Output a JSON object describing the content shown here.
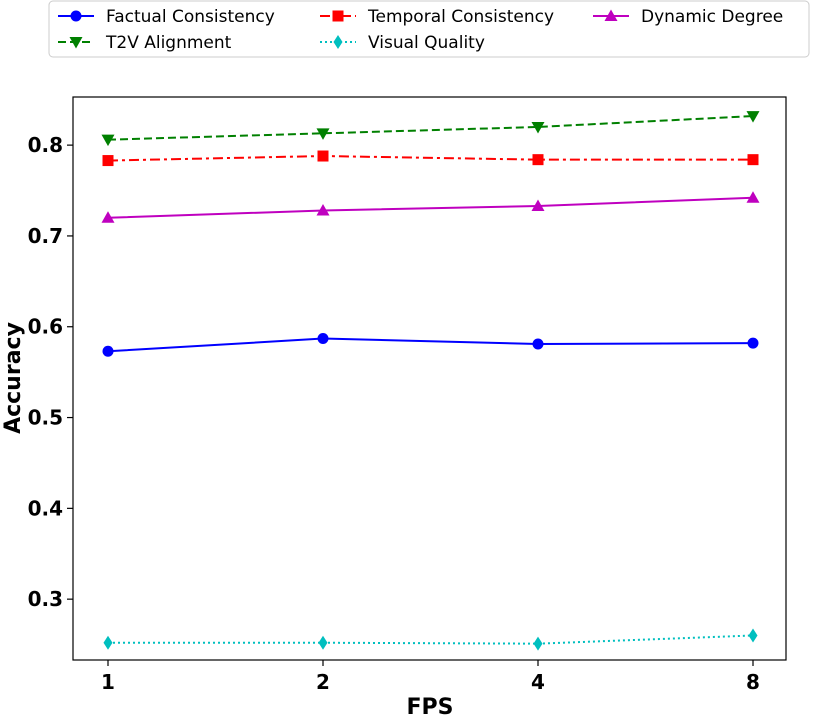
{
  "chart_data": {
    "type": "line",
    "title": "",
    "xlabel": "FPS",
    "ylabel": "Accuracy",
    "x": [
      1,
      2,
      4,
      8
    ],
    "x_tick_labels": [
      "1",
      "2",
      "4",
      "8"
    ],
    "y_ticks": [
      0.3,
      0.4,
      0.5,
      0.6,
      0.7,
      0.8
    ],
    "y_tick_labels": [
      "0.3",
      "0.4",
      "0.5",
      "0.6",
      "0.7",
      "0.8"
    ],
    "ylim": [
      0.233,
      0.853
    ],
    "legend_position": "top, outside plot, 3 columns",
    "grid": false,
    "series": [
      {
        "name": "Factual Consistency",
        "values": [
          0.573,
          0.587,
          0.581,
          0.582
        ],
        "color": "#0000ff",
        "marker": "circle",
        "linestyle": "solid"
      },
      {
        "name": "Temporal Consistency",
        "values": [
          0.783,
          0.788,
          0.784,
          0.784
        ],
        "color": "#ff0000",
        "marker": "square",
        "linestyle": "dashdot"
      },
      {
        "name": "Dynamic Degree",
        "values": [
          0.72,
          0.728,
          0.733,
          0.742
        ],
        "color": "#bf00bf",
        "marker": "triangle-up",
        "linestyle": "solid"
      },
      {
        "name": "T2V Alignment",
        "values": [
          0.806,
          0.813,
          0.82,
          0.832
        ],
        "color": "#008000",
        "marker": "triangle-down",
        "linestyle": "dashed"
      },
      {
        "name": "Visual Quality",
        "values": [
          0.252,
          0.252,
          0.251,
          0.26
        ],
        "color": "#00bfbf",
        "marker": "diamond",
        "linestyle": "dotted"
      }
    ]
  }
}
